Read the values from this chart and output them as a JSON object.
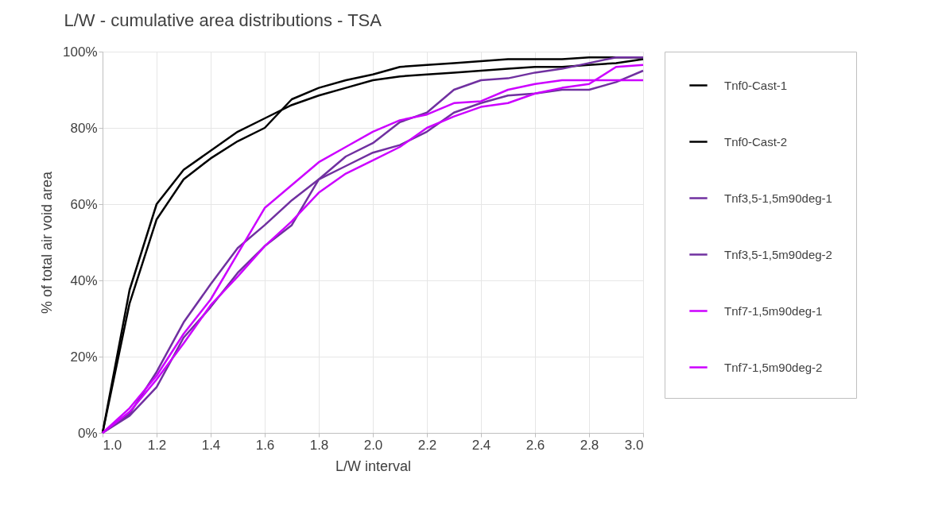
{
  "chart_data": {
    "type": "line",
    "title": "L/W - cumulative area distributions - TSA",
    "xlabel": "L/W interval",
    "ylabel": "% of total air void area",
    "x": [
      1.0,
      1.1,
      1.2,
      1.3,
      1.4,
      1.5,
      1.6,
      1.7,
      1.8,
      1.9,
      2.0,
      2.1,
      2.2,
      2.3,
      2.4,
      2.5,
      2.6,
      2.7,
      2.8,
      2.9,
      3.0
    ],
    "xlim": [
      1.0,
      3.0
    ],
    "xticks": [
      {
        "value": 1.0,
        "label": "1.0"
      },
      {
        "value": 1.2,
        "label": "1.2"
      },
      {
        "value": 1.4,
        "label": "1.4"
      },
      {
        "value": 1.6,
        "label": "1.6"
      },
      {
        "value": 1.8,
        "label": "1.8"
      },
      {
        "value": 2.0,
        "label": "2.0"
      },
      {
        "value": 2.2,
        "label": "2.2"
      },
      {
        "value": 2.4,
        "label": "2.4"
      },
      {
        "value": 2.6,
        "label": "2.6"
      },
      {
        "value": 2.8,
        "label": "2.8"
      },
      {
        "value": 3.0,
        "label": "3.0"
      }
    ],
    "ylim": [
      0,
      100
    ],
    "yticks": [
      {
        "value": 0,
        "label": "0%"
      },
      {
        "value": 20,
        "label": "20%"
      },
      {
        "value": 40,
        "label": "40%"
      },
      {
        "value": 60,
        "label": "60%"
      },
      {
        "value": 80,
        "label": "80%"
      },
      {
        "value": 100,
        "label": "100%"
      }
    ],
    "grid": true,
    "legend": "right",
    "marker": "none",
    "line_style": "solid",
    "series": [
      {
        "name": "Tnf0-Cast-1",
        "color": "#000000",
        "values": [
          0,
          37.5,
          60,
          69,
          74,
          79,
          82.5,
          86,
          88.5,
          90.5,
          92.5,
          93.5,
          94,
          94.5,
          95,
          95.5,
          96,
          96,
          96.5,
          97,
          98
        ]
      },
      {
        "name": "Tnf0-Cast-2",
        "color": "#000000",
        "values": [
          0,
          34,
          56,
          66.5,
          72,
          76.5,
          80,
          87.5,
          90.5,
          92.5,
          94,
          96,
          96.5,
          97,
          97.5,
          98,
          98,
          98,
          98.5,
          98.5,
          98.5
        ]
      },
      {
        "name": "Tnf3,5-1,5m90deg-1",
        "color": "#7030a0",
        "values": [
          0,
          5,
          16,
          29,
          39,
          48.5,
          54.5,
          61,
          66.5,
          70,
          73.5,
          75.5,
          79,
          84,
          86.5,
          88.5,
          89,
          90,
          90,
          92,
          95
        ]
      },
      {
        "name": "Tnf3,5-1,5m90deg-2",
        "color": "#7030a0",
        "values": [
          0,
          4.5,
          12,
          25,
          33,
          42,
          49,
          54.5,
          66.5,
          72.5,
          76,
          81.5,
          84,
          90,
          92.5,
          93,
          94.5,
          95.5,
          97,
          98.5,
          98.5
        ]
      },
      {
        "name": "Tnf7-1,5m90deg-1",
        "color": "#cc00ff",
        "values": [
          0,
          6.5,
          15,
          26,
          35,
          47,
          59,
          65,
          71,
          75,
          79,
          82,
          83.5,
          86.5,
          87,
          90,
          91.5,
          92.5,
          92.5,
          92.5,
          92.5
        ]
      },
      {
        "name": "Tnf7-1,5m90deg-2",
        "color": "#cc00ff",
        "values": [
          0,
          5.5,
          14,
          23.5,
          33.5,
          41,
          49,
          55.5,
          63,
          68,
          71.5,
          75,
          80,
          83,
          85.5,
          86.5,
          89,
          90.5,
          91.5,
          96,
          96.5
        ]
      }
    ]
  }
}
